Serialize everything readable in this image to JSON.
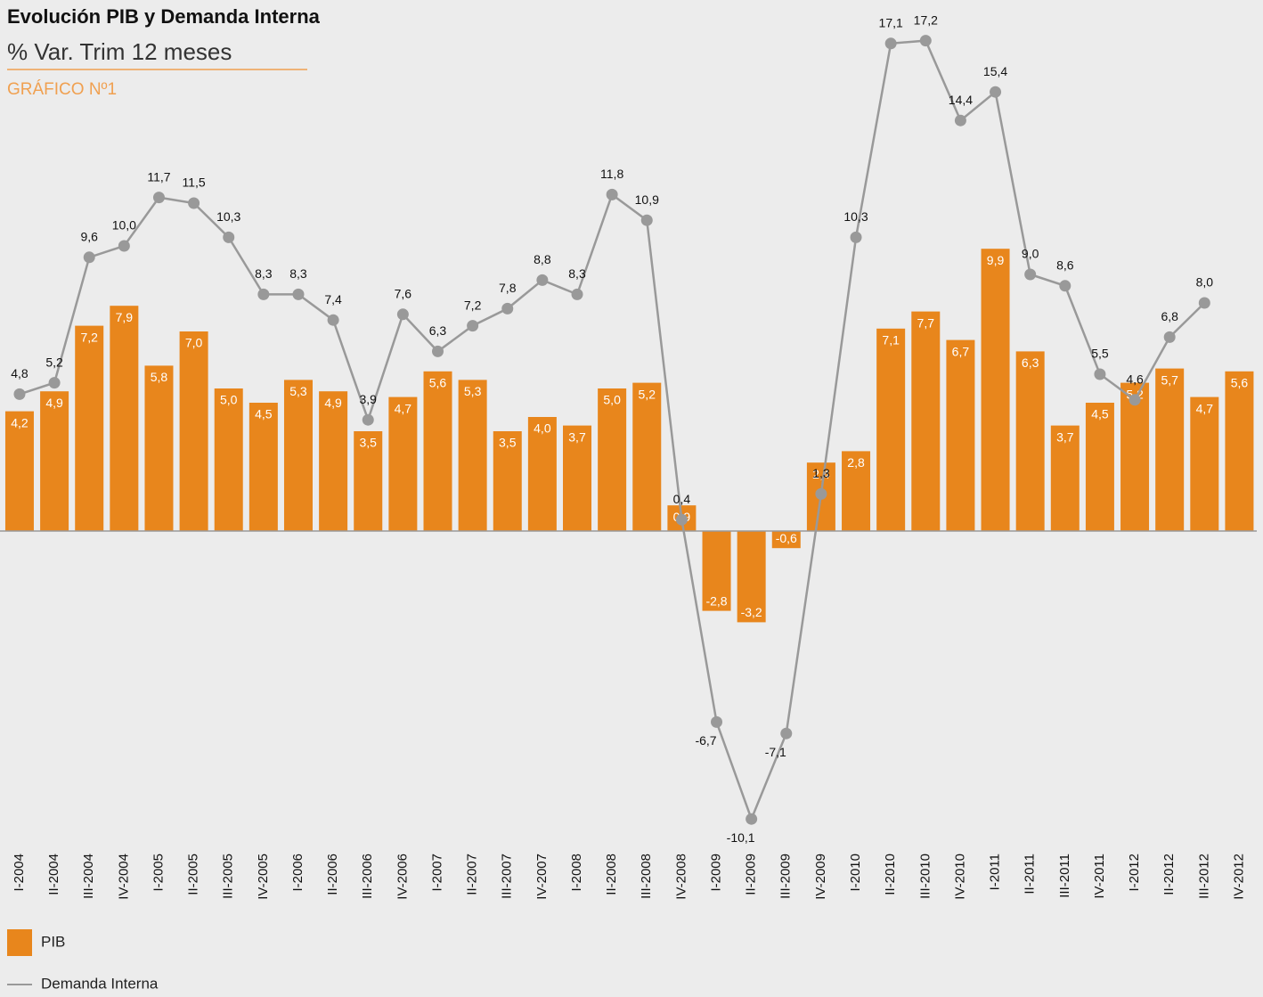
{
  "chart_data": {
    "type": "bar_line",
    "title": "Evolución PIB y Demanda Interna",
    "subtitle": "% Var. Trim 12 meses",
    "figure_label": "GRÁFICO Nº1",
    "categories": [
      "I-2004",
      "II-2004",
      "III-2004",
      "IV-2004",
      "I-2005",
      "II-2005",
      "III-2005",
      "IV-2005",
      "I-2006",
      "II-2006",
      "III-2006",
      "IV-2006",
      "I-2007",
      "II-2007",
      "III-2007",
      "IV-2007",
      "I-2008",
      "II-2008",
      "III-2008",
      "IV-2008",
      "I-2009",
      "II-2009",
      "III-2009",
      "IV-2009",
      "I-2010",
      "II-2010",
      "III-2010",
      "IV-2010",
      "I-2011",
      "II-2011",
      "III-2011",
      "IV-2011",
      "I-2012",
      "II-2012",
      "III-2012",
      "IV-2012"
    ],
    "ylim": [
      -11,
      18
    ],
    "series": [
      {
        "name": "PIB",
        "type": "bar",
        "color": "#e8861c",
        "values": [
          4.2,
          4.9,
          7.2,
          7.9,
          5.8,
          7.0,
          5.0,
          4.5,
          5.3,
          4.9,
          3.5,
          4.7,
          5.6,
          5.3,
          3.5,
          4.0,
          3.7,
          5.0,
          5.2,
          0.9,
          -2.8,
          -3.2,
          -0.6,
          2.4,
          2.8,
          7.1,
          7.7,
          6.7,
          9.9,
          6.3,
          3.7,
          4.5,
          5.2,
          5.7,
          4.7,
          5.6
        ],
        "value_labels": [
          "4,2",
          "4,9",
          "7,2",
          "7,9",
          "5,8",
          "7,0",
          "5,0",
          "4,5",
          "5,3",
          "4,9",
          "3,5",
          "4,7",
          "5,6",
          "5,3",
          "3,5",
          "4,0",
          "3,7",
          "5,0",
          "5,2",
          "0,9",
          "-2,8",
          "-3,2",
          "-0,6",
          "2,4",
          "2,8",
          "7,1",
          "7,7",
          "6,7",
          "9,9",
          "6,3",
          "3,7",
          "4,5",
          "5,2",
          "5,7",
          "4,7",
          "5,6"
        ]
      },
      {
        "name": "Demanda Interna",
        "type": "line",
        "color": "#999999",
        "values": [
          4.8,
          5.2,
          9.6,
          10.0,
          11.7,
          11.5,
          10.3,
          8.3,
          8.3,
          7.4,
          3.9,
          7.6,
          6.3,
          7.2,
          7.8,
          8.8,
          8.3,
          11.8,
          10.9,
          0.4,
          -6.7,
          -10.1,
          -7.1,
          1.3,
          10.3,
          17.1,
          17.2,
          14.4,
          15.4,
          9.0,
          8.6,
          5.5,
          4.6,
          6.8,
          8.0,
          null
        ],
        "value_labels": [
          "4,8",
          "5,2",
          "9,6",
          "10,0",
          "11,7",
          "11,5",
          "10,3",
          "8,3",
          "8,3",
          "7,4",
          "3,9",
          "7,6",
          "6,3",
          "7,2",
          "7,8",
          "8,8",
          "8,3",
          "11,8",
          "10,9",
          "0,4",
          "-6,7",
          "-10,1",
          "-7,1",
          "1,3",
          "10,3",
          "17,1",
          "17,2",
          "14,4",
          "15,4",
          "9,0",
          "8,6",
          "5,5",
          "4,6",
          "6,8",
          "8,0",
          null
        ]
      }
    ]
  }
}
